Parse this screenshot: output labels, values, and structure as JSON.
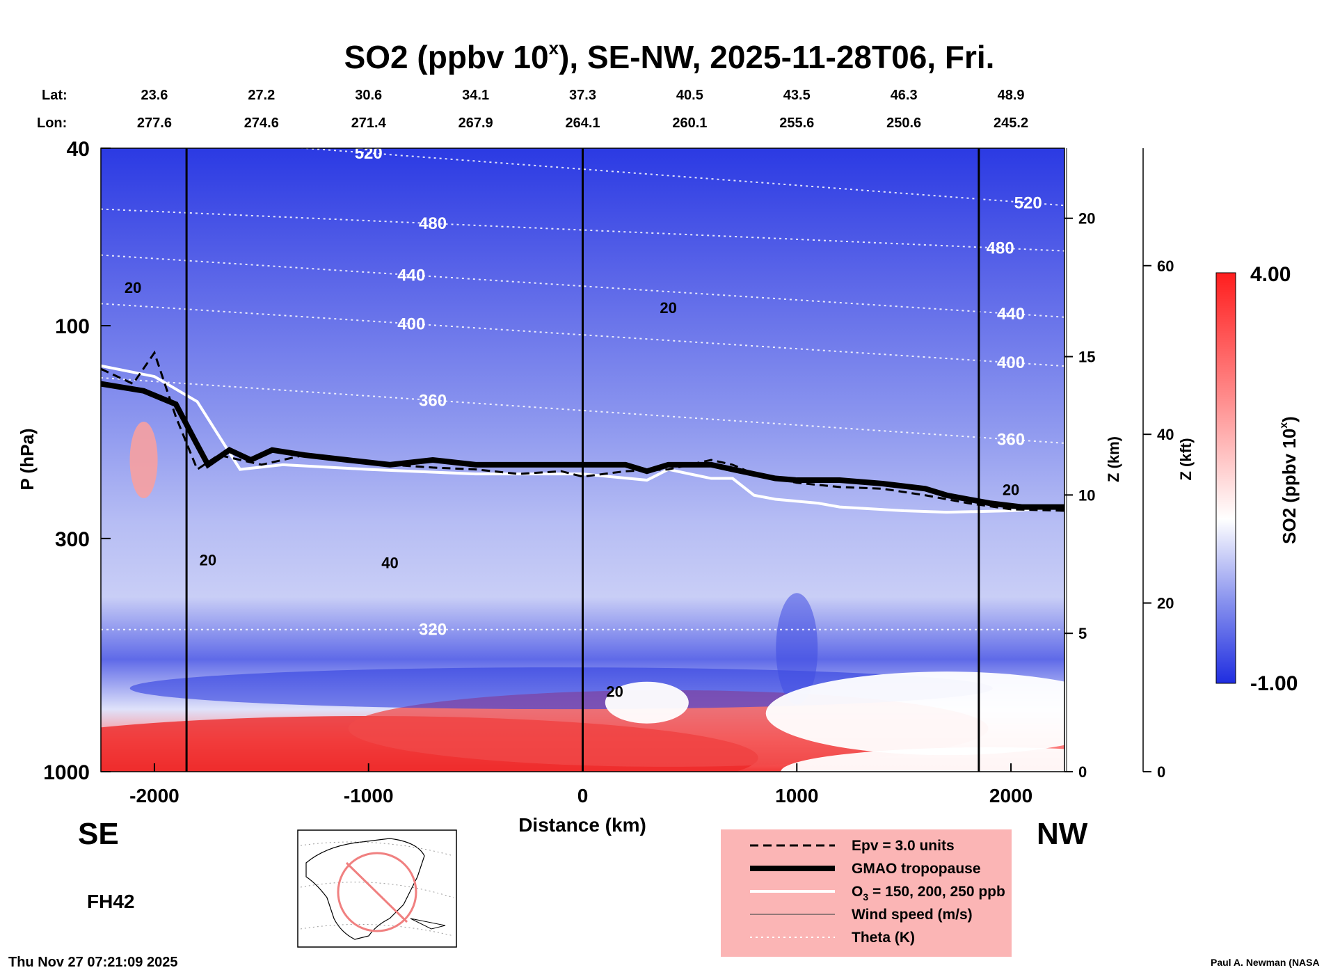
{
  "chart_data": {
    "type": "heatmap",
    "title_main": "SO2 (ppbv 10",
    "title_sup": "x",
    "title_rest": "), SE-NW, 2025-11-28T06, Fri.",
    "xlabel": "Distance (km)",
    "ylabel": "P (hPa)",
    "y2label": "Z (km)",
    "y3label": "Z (kft)",
    "colorbar_label_main": "SO2 (ppbv 10",
    "colorbar_label_sup": "x",
    "colorbar_label_end": ")",
    "colorbar_max": "4.00",
    "colorbar_min": "-1.00",
    "colorbar_range": [
      -1.0,
      4.0
    ],
    "colors": {
      "low": "#1f2de0",
      "mid": "#ffffff",
      "high": "#ff1e1e"
    },
    "x_range": [
      -2250,
      2250
    ],
    "x_ticks": [
      "-2000",
      "-1000",
      "0",
      "1000",
      "2000"
    ],
    "x_tick_values": [
      -2000,
      -1000,
      0,
      1000,
      2000
    ],
    "y_range_hpa": [
      1000,
      40
    ],
    "y_scale": "log",
    "y_ticks": [
      "40",
      "100",
      "300",
      "1000"
    ],
    "y_tick_values": [
      40,
      100,
      300,
      1000
    ],
    "z_km_ticks": [
      "0",
      "5",
      "10",
      "15",
      "20"
    ],
    "z_km_values": [
      0,
      5,
      10,
      15,
      20
    ],
    "z_kft_ticks": [
      "0",
      "20",
      "40",
      "60"
    ],
    "z_kft_values": [
      0,
      20,
      40,
      60
    ],
    "lat_label": "Lat:",
    "lon_label": "Lon:",
    "lat": [
      "23.6",
      "27.2",
      "30.6",
      "34.1",
      "37.3",
      "40.5",
      "43.5",
      "46.3",
      "48.9"
    ],
    "lon": [
      "277.6",
      "274.6",
      "271.4",
      "267.9",
      "264.1",
      "260.1",
      "255.6",
      "250.6",
      "245.2"
    ],
    "latlon_distance_km": [
      -2000,
      -1500,
      -1000,
      -500,
      0,
      500,
      1000,
      1500,
      2000
    ],
    "vertical_lines_km": [
      -1850,
      0,
      1850
    ],
    "theta_contours": [
      {
        "label": "520",
        "label_at": [
          [
            -1000,
            41
          ],
          [
            2080,
            53
          ]
        ]
      },
      {
        "label": "480",
        "label_at": [
          [
            -700,
            59
          ],
          [
            1950,
            67
          ]
        ]
      },
      {
        "label": "440",
        "label_at": [
          [
            -800,
            77
          ],
          [
            2000,
            94
          ]
        ]
      },
      {
        "label": "400",
        "label_at": [
          [
            -800,
            99
          ],
          [
            2000,
            121
          ]
        ]
      },
      {
        "label": "360",
        "label_at": [
          [
            -700,
            147
          ],
          [
            2000,
            180
          ]
        ]
      },
      {
        "label": "320",
        "label_at": [
          [
            -700,
            480
          ]
        ]
      }
    ],
    "wind_contour_labels": [
      {
        "label": "20",
        "at": [
          -2100,
          82
        ]
      },
      {
        "label": "20",
        "at": [
          400,
          91
        ]
      },
      {
        "label": "20",
        "at": [
          -1750,
          335
        ]
      },
      {
        "label": "40",
        "at": [
          -900,
          340
        ]
      },
      {
        "label": "20",
        "at": [
          150,
          660
        ]
      },
      {
        "label": "20",
        "at": [
          2000,
          233
        ]
      }
    ],
    "tropopause_hpa": {
      "x": [
        -2250,
        -2050,
        -1900,
        -1800,
        -1750,
        -1650,
        -1550,
        -1450,
        -1300,
        -1100,
        -900,
        -700,
        -500,
        -300,
        -100,
        0,
        200,
        300,
        400,
        600,
        700,
        800,
        900,
        1000,
        1200,
        1400,
        1600,
        1700,
        1900,
        2050,
        2250
      ],
      "y": [
        135,
        140,
        150,
        185,
        205,
        190,
        200,
        190,
        195,
        200,
        205,
        200,
        205,
        205,
        205,
        205,
        205,
        212,
        205,
        205,
        210,
        215,
        220,
        222,
        222,
        226,
        232,
        240,
        250,
        255,
        255
      ]
    },
    "epv_hpa": {
      "x": [
        -2250,
        -2100,
        -2000,
        -1900,
        -1800,
        -1700,
        -1500,
        -1300,
        -1100,
        -900,
        -700,
        -500,
        -300,
        -100,
        0,
        200,
        400,
        600,
        700,
        800,
        1000,
        1200,
        1400,
        1600,
        1800,
        2000,
        2250
      ],
      "y": [
        125,
        135,
        115,
        160,
        210,
        195,
        205,
        195,
        200,
        205,
        208,
        210,
        215,
        212,
        218,
        212,
        210,
        200,
        205,
        215,
        225,
        230,
        232,
        240,
        250,
        258,
        260
      ]
    },
    "ozone_200_hpa": {
      "x": [
        -2250,
        -2000,
        -1800,
        -1600,
        -1400,
        -1000,
        -500,
        0,
        300,
        400,
        500,
        600,
        700,
        800,
        900,
        1100,
        1200,
        1500,
        1700,
        2000,
        2250
      ],
      "y": [
        123,
        130,
        148,
        210,
        205,
        210,
        215,
        215,
        222,
        210,
        215,
        220,
        220,
        240,
        245,
        250,
        255,
        260,
        262,
        260,
        255
      ]
    },
    "legend": [
      {
        "label": "Epv = 3.0 units",
        "style": "dashed"
      },
      {
        "label": "GMAO tropopause",
        "style": "thick"
      },
      {
        "label_pre": "O",
        "label_sub": "3",
        "label_post": " = 150, 200, 250 ppb",
        "style": "white"
      },
      {
        "label": "Wind speed (m/s)",
        "style": "thin"
      },
      {
        "label": "Theta (K)",
        "style": "dotted"
      }
    ]
  },
  "annotations": {
    "left_dir": "SE",
    "right_dir": "NW",
    "forecast": "FH42",
    "timestamp": "Thu Nov 27 07:21:09 2025",
    "credit": "Paul A. Newman (NASA"
  }
}
